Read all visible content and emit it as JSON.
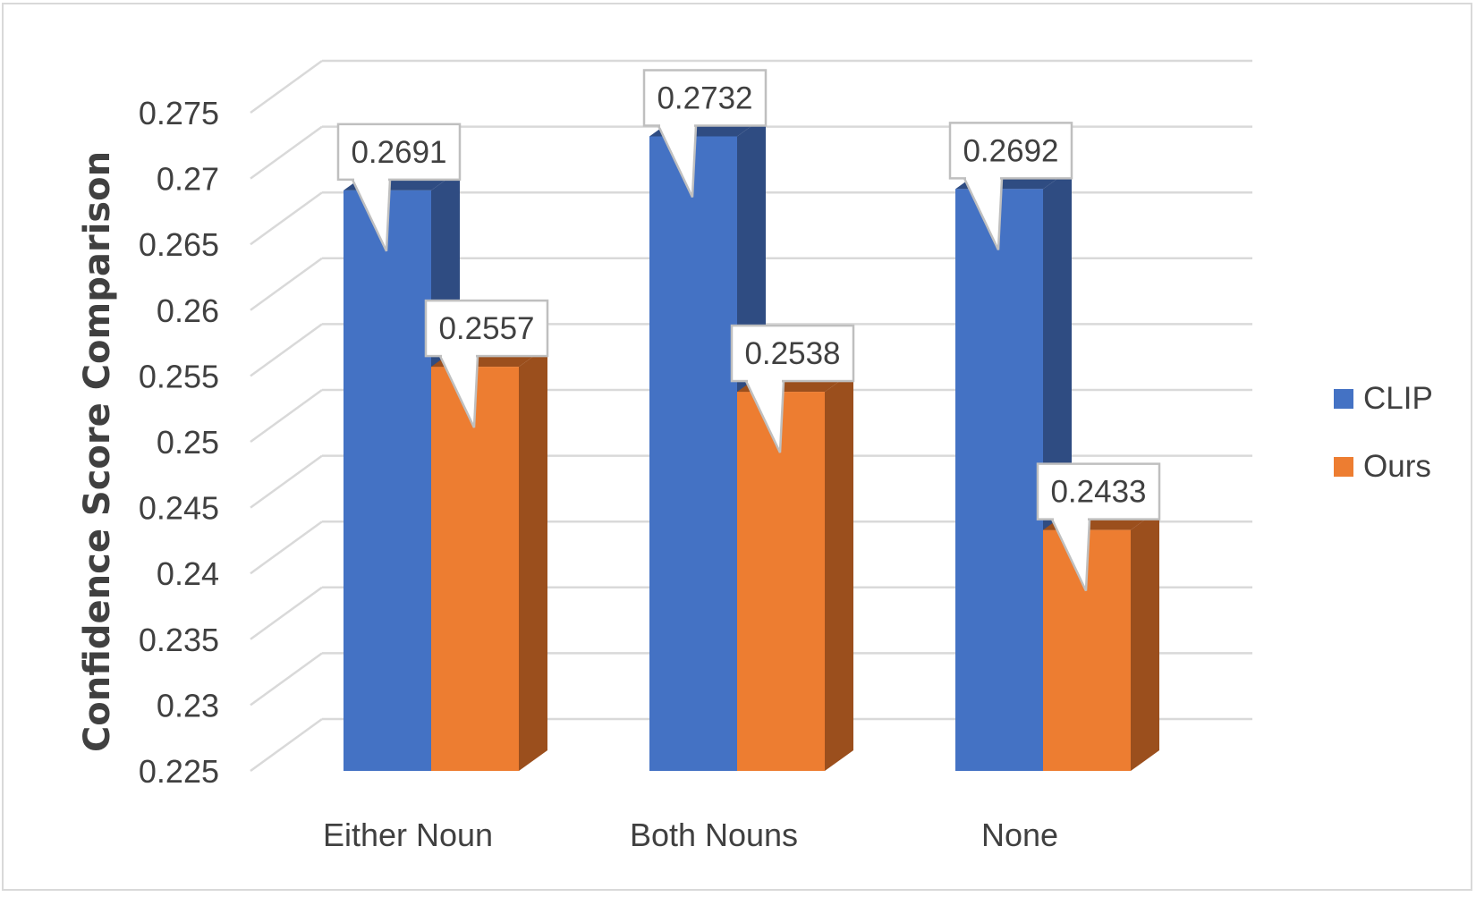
{
  "chart_data": {
    "type": "bar",
    "variant": "3d-clustered-column",
    "categories": [
      "Either Noun",
      "Both Nouns",
      "None"
    ],
    "series": [
      {
        "name": "CLIP",
        "values": [
          0.2691,
          0.2732,
          0.2692
        ],
        "color": "#4472c4",
        "side_color": "#2f4c82"
      },
      {
        "name": "Ours",
        "values": [
          0.2557,
          0.2538,
          0.2433
        ],
        "color": "#ed7d31",
        "side_color": "#9b4f1d"
      }
    ],
    "data_labels": [
      [
        "0.2691",
        "0.2732",
        "0.2692"
      ],
      [
        "0.2557",
        "0.2538",
        "0.2433"
      ]
    ],
    "title": "",
    "xlabel": "",
    "ylabel": "Confidence Score Comparison",
    "ylim": [
      0.225,
      0.275
    ],
    "ytick_step": 0.005,
    "yticks": [
      "0.225",
      "0.23",
      "0.235",
      "0.24",
      "0.245",
      "0.25",
      "0.255",
      "0.26",
      "0.265",
      "0.27",
      "0.275"
    ],
    "grid": true,
    "legend": "right",
    "grid_color": "#d9d9d9"
  }
}
